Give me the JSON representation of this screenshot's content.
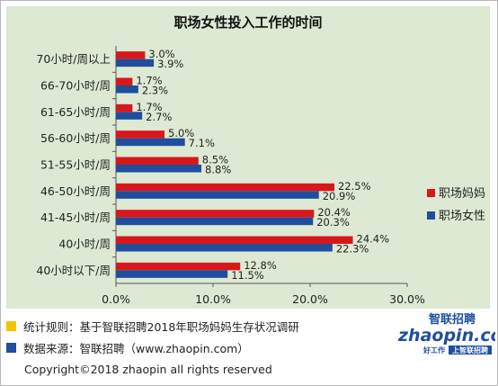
{
  "chart_data": {
    "type": "bar",
    "orientation": "horizontal",
    "title": "职场女性投入工作的时间",
    "categories": [
      "70小时/周以上",
      "66-70小时/周",
      "61-65小时/周",
      "56-60小时/周",
      "51-55小时/周",
      "46-50小时/周",
      "41-45小时/周",
      "40小时/周",
      "40小时以下/周"
    ],
    "series": [
      {
        "name": "职场妈妈",
        "color": "#d8171c",
        "values": [
          3.0,
          1.7,
          1.7,
          5.0,
          8.5,
          22.5,
          20.4,
          24.4,
          12.8
        ],
        "labels": [
          "3.0%",
          "1.7%",
          "1.7%",
          "5.0%",
          "8.5%",
          "22.5%",
          "20.4%",
          "24.4%",
          "12.8%"
        ]
      },
      {
        "name": "职场女性",
        "color": "#1f4e9d",
        "values": [
          3.9,
          2.3,
          2.7,
          7.1,
          8.8,
          20.9,
          20.3,
          22.3,
          11.5
        ],
        "labels": [
          "3.9%",
          "2.3%",
          "2.7%",
          "7.1%",
          "8.8%",
          "20.9%",
          "20.3%",
          "22.3%",
          "11.5%"
        ]
      }
    ],
    "xlim": [
      0,
      30
    ],
    "xticks": [
      0,
      10,
      20,
      30
    ],
    "xtick_labels": [
      "0.0%",
      "10.0%",
      "20.0%",
      "30.0%"
    ],
    "grid": false,
    "legend_position": "right"
  },
  "footer": {
    "note1": "统计规则：基于智联招聘2018年职场妈妈生存状况调研",
    "note2": "数据来源：智联招聘（www.zhaopin.com）",
    "copyright": "Copyright©2018 zhaopin all rights reserved",
    "note1_color": "#f5c400",
    "note2_color": "#1f4e9d"
  },
  "brand": {
    "logo_cn": "智联招聘",
    "logo_en": "zhaopin.com",
    "slogan_left": "好工作",
    "slogan_right": "上智联招聘"
  }
}
